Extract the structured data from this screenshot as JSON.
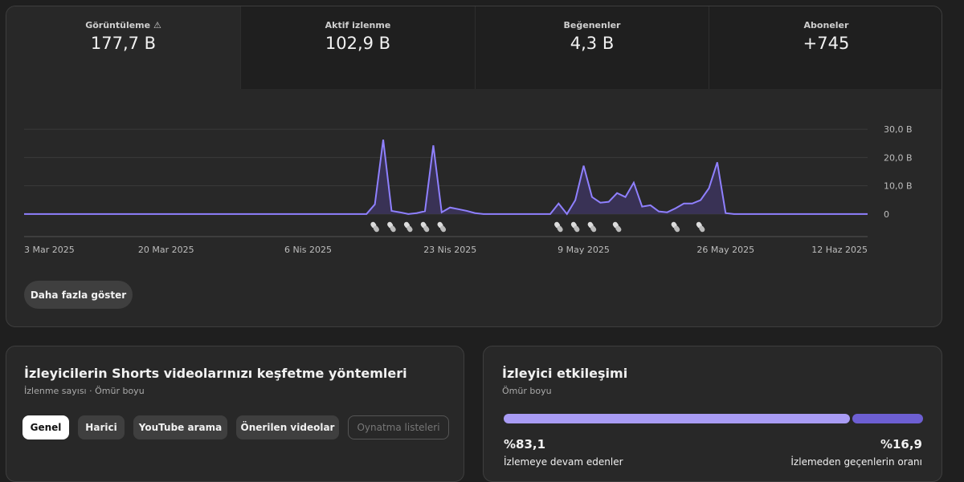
{
  "metrics": [
    {
      "label": "Görüntüleme",
      "value": "177,7 B"
    },
    {
      "label": "Aktif izlenme",
      "value": "102,9 B"
    },
    {
      "label": "Beğenenler",
      "value": "4,3 B"
    },
    {
      "label": "Aboneler",
      "value": "+745"
    }
  ],
  "chart_data": {
    "type": "line",
    "color": "#8f80ff",
    "x": [
      "2025-03-03",
      "2025-03-04",
      "2025-03-05",
      "2025-03-06",
      "2025-03-07",
      "2025-03-08",
      "2025-03-09",
      "2025-03-10",
      "2025-03-11",
      "2025-03-12",
      "2025-03-13",
      "2025-03-14",
      "2025-03-15",
      "2025-03-16",
      "2025-03-17",
      "2025-03-18",
      "2025-03-19",
      "2025-03-20",
      "2025-03-21",
      "2025-03-22",
      "2025-03-23",
      "2025-03-24",
      "2025-03-25",
      "2025-03-26",
      "2025-03-27",
      "2025-03-28",
      "2025-03-29",
      "2025-03-30",
      "2025-03-31",
      "2025-04-01",
      "2025-04-02",
      "2025-04-03",
      "2025-04-04",
      "2025-04-05",
      "2025-04-06",
      "2025-04-07",
      "2025-04-08",
      "2025-04-09",
      "2025-04-10",
      "2025-04-11",
      "2025-04-12",
      "2025-04-13",
      "2025-04-14",
      "2025-04-15",
      "2025-04-16",
      "2025-04-17",
      "2025-04-18",
      "2025-04-19",
      "2025-04-20",
      "2025-04-21",
      "2025-04-22",
      "2025-04-23",
      "2025-04-24",
      "2025-04-25",
      "2025-04-26",
      "2025-04-27",
      "2025-04-28",
      "2025-04-29",
      "2025-04-30",
      "2025-05-01",
      "2025-05-02",
      "2025-05-03",
      "2025-05-04",
      "2025-05-05",
      "2025-05-06",
      "2025-05-07",
      "2025-05-08",
      "2025-05-09",
      "2025-05-10",
      "2025-05-11",
      "2025-05-12",
      "2025-05-13",
      "2025-05-14",
      "2025-05-15",
      "2025-05-16",
      "2025-05-17",
      "2025-05-18",
      "2025-05-19",
      "2025-05-20",
      "2025-05-21",
      "2025-05-22",
      "2025-05-23",
      "2025-05-24",
      "2025-05-25",
      "2025-05-26",
      "2025-05-27",
      "2025-05-28",
      "2025-05-29",
      "2025-05-30",
      "2025-05-31",
      "2025-06-01",
      "2025-06-02",
      "2025-06-03",
      "2025-06-04",
      "2025-06-05",
      "2025-06-06",
      "2025-06-07",
      "2025-06-08",
      "2025-06-09",
      "2025-06-10",
      "2025-06-11",
      "2025-06-12"
    ],
    "values": [
      0,
      0,
      0,
      0,
      0,
      0,
      0,
      0,
      0,
      0,
      0,
      0,
      0,
      0,
      0,
      0,
      0,
      0,
      0,
      0,
      0,
      0,
      0,
      0,
      0,
      0,
      0,
      0,
      0,
      0,
      0,
      0,
      0,
      0,
      0,
      0,
      0,
      0,
      0,
      0,
      0,
      0,
      3.4,
      26.3,
      1.1,
      0.6,
      0,
      0.3,
      1,
      24.3,
      0.6,
      2.3,
      1.7,
      1.1,
      0.3,
      0,
      0,
      0,
      0,
      0,
      0,
      0,
      0,
      0,
      3.7,
      0,
      4.9,
      17.1,
      6,
      4,
      4.3,
      7.4,
      6,
      11.1,
      2.6,
      3.1,
      0.9,
      0.6,
      2,
      3.7,
      3.7,
      4.9,
      9.1,
      18.3,
      0.3,
      0,
      0,
      0,
      0,
      0,
      0,
      0,
      0,
      0,
      0,
      0,
      0,
      0,
      0,
      0,
      0,
      0
    ],
    "xlim": [
      "2025-03-03",
      "2025-06-12"
    ],
    "xticks": [
      {
        "value": "2025-03-03",
        "label": "3 Mar 2025"
      },
      {
        "value": "2025-03-20",
        "label": "20 Mar 2025"
      },
      {
        "value": "2025-04-06",
        "label": "6 Nis 2025"
      },
      {
        "value": "2025-04-23",
        "label": "23 Nis 2025"
      },
      {
        "value": "2025-05-09",
        "label": "9 May 2025"
      },
      {
        "value": "2025-05-26",
        "label": "26 May 2025"
      },
      {
        "value": "2025-06-12",
        "label": "12 Haz 2025"
      }
    ],
    "ylim": [
      -8,
      36
    ],
    "yticks": [
      0,
      {
        "value": 10,
        "label": "10,0 B"
      },
      {
        "value": 20,
        "label": "20,0 B"
      },
      {
        "value": 30,
        "label": "30,0 B"
      }
    ],
    "grid": true,
    "upload_dates": [
      "2025-04-14",
      "2025-04-16",
      "2025-04-18",
      "2025-04-20",
      "2025-04-22",
      "2025-05-06",
      "2025-05-08",
      "2025-05-10",
      "2025-05-13",
      "2025-05-20",
      "2025-05-23"
    ]
  },
  "more_button": "Daha fazla göster",
  "discovery": {
    "title": "İzleyicilerin Shorts videolarınızı keşfetme yöntemleri",
    "subtitle": "İzlenme sayısı · Ömür boyu",
    "tabs": [
      "Genel",
      "Harici",
      "YouTube arama",
      "Önerilen videolar",
      "Oynatma listeleri"
    ]
  },
  "engagement": {
    "title": "İzleyici etkileşimi",
    "subtitle": "Ömür boyu",
    "values": [
      83.1,
      16.9
    ],
    "value_labels": [
      "%83,1",
      "%16,9"
    ],
    "labels": [
      "İzlemeye devam edenler",
      "İzlemeden geçenlerin oranı"
    ],
    "colors": [
      "#a99cf5",
      "#6d5fd3"
    ]
  }
}
